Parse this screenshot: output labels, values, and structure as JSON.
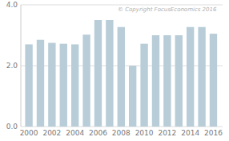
{
  "chart_data": {
    "type": "bar",
    "x": [
      2000,
      2001,
      2002,
      2003,
      2004,
      2005,
      2006,
      2007,
      2008,
      2009,
      2010,
      2011,
      2012,
      2013,
      2014,
      2015,
      2016
    ],
    "values": [
      2.7,
      2.85,
      2.75,
      2.72,
      2.7,
      3.02,
      3.5,
      3.5,
      3.27,
      2.0,
      2.72,
      3.0,
      3.0,
      3.0,
      3.27,
      3.27,
      3.05
    ],
    "color": "#b8cdd8",
    "xlim": [
      1999.3,
      2016.8
    ],
    "xticks": [
      2000,
      2002,
      2004,
      2006,
      2008,
      2010,
      2012,
      2014,
      2016
    ],
    "ylim": [
      0.0,
      4.0
    ],
    "yticks": [
      {
        "value": 0.0,
        "label": "0.0"
      },
      {
        "value": 2.0,
        "label": "2.0"
      },
      {
        "value": 4.0,
        "label": "4.0"
      }
    ],
    "grid": true,
    "annotations": [
      "© Copyright FocusEconomics  2016"
    ]
  }
}
